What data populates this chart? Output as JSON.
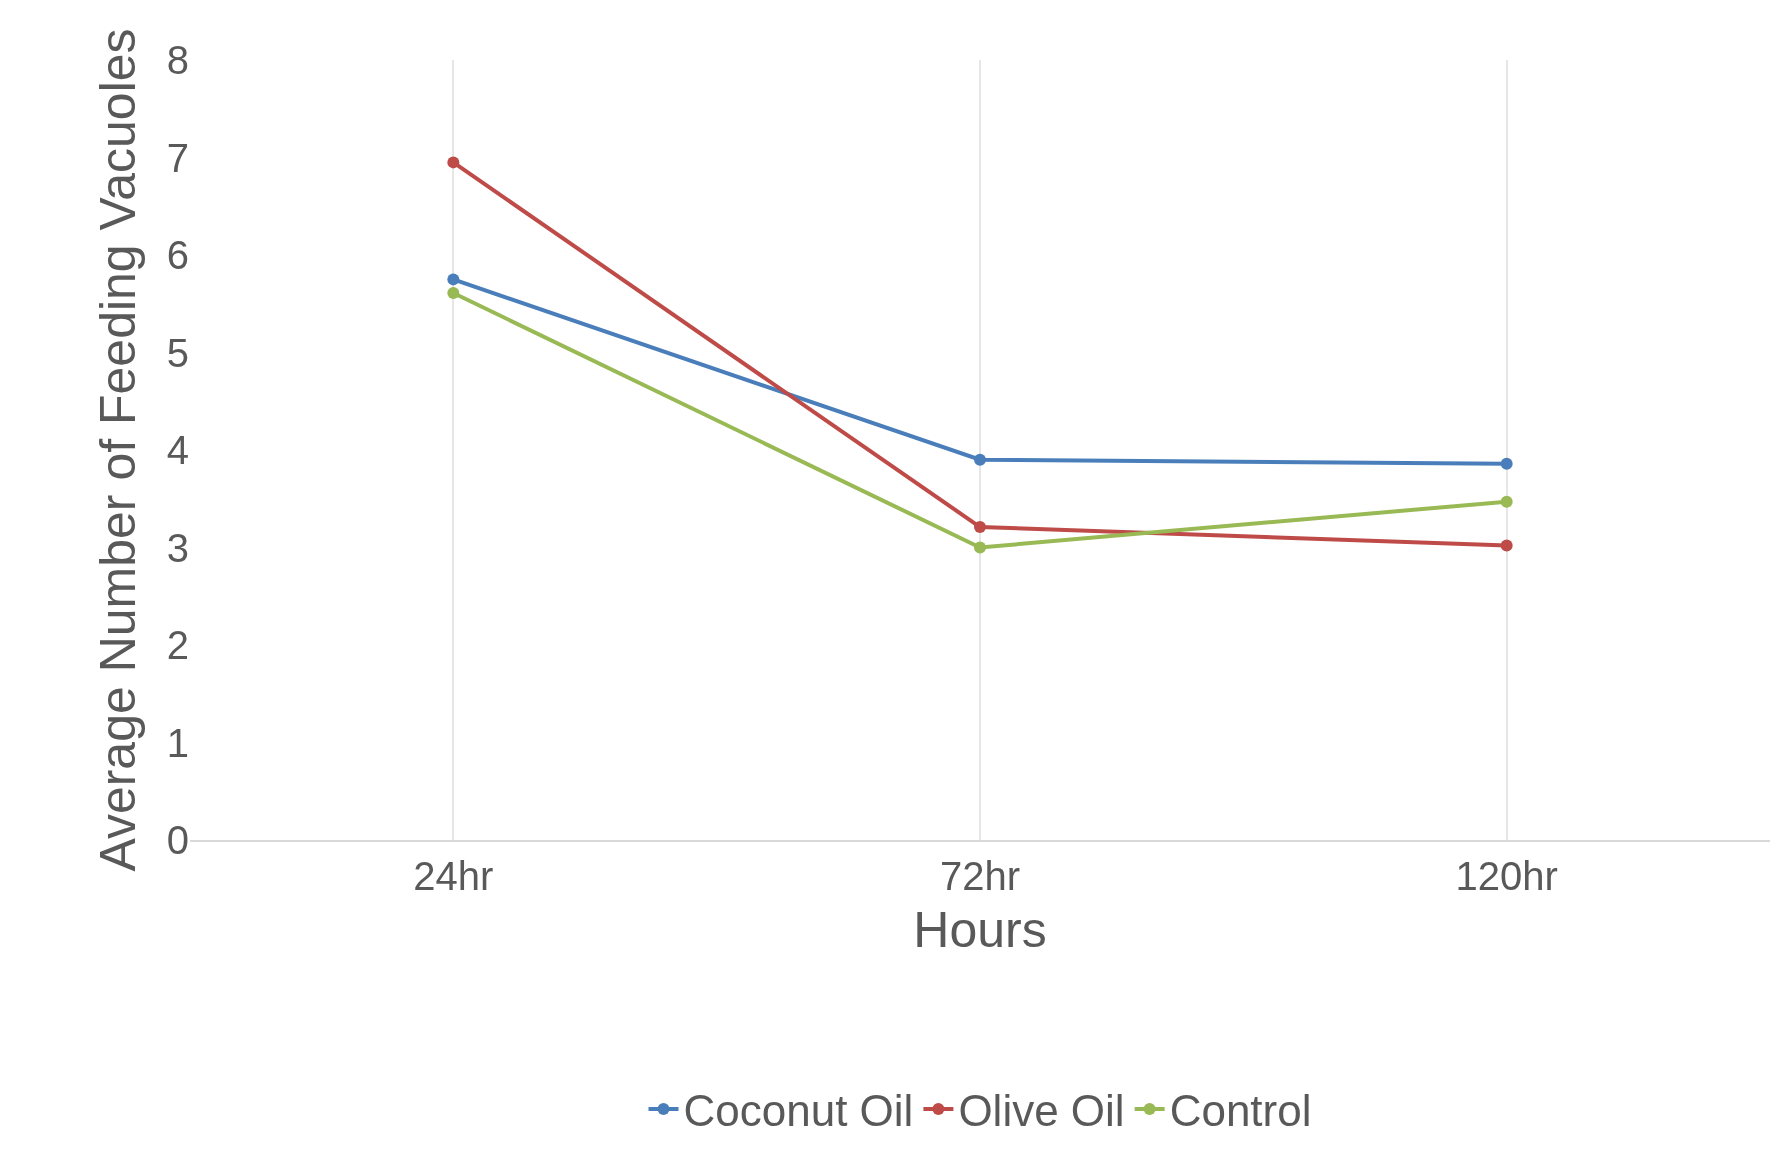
{
  "chart_data": {
    "type": "line",
    "xlabel": "Hours",
    "ylabel": "Average Number of Feeding Vacuoles",
    "categories": [
      "24hr",
      "72hr",
      "120hr"
    ],
    "series": [
      {
        "name": "Coconut Oil",
        "color": "#4a7ebb",
        "values": [
          5.75,
          3.9,
          3.86
        ]
      },
      {
        "name": "Olive Oil",
        "color": "#be4b48",
        "values": [
          6.95,
          3.21,
          3.02
        ]
      },
      {
        "name": "Control",
        "color": "#98b954",
        "values": [
          5.61,
          3.0,
          3.47
        ]
      }
    ],
    "ylim": [
      0,
      8
    ],
    "yticks": [
      0,
      1,
      2,
      3,
      4,
      5,
      6,
      7,
      8
    ],
    "grid": "x",
    "legend": "bottom",
    "marker": "circle",
    "line_style": "solid"
  }
}
